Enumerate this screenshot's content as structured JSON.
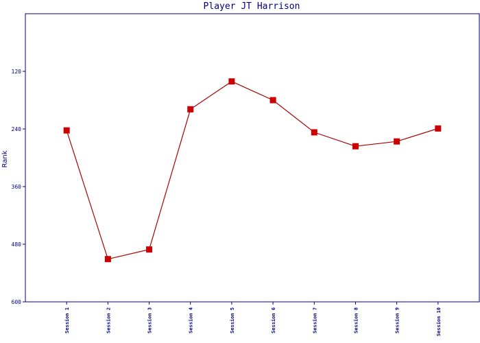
{
  "chart_data": {
    "type": "line",
    "title": "Player JT Harrison",
    "y_label": "Rank",
    "categories": [
      "Session 1",
      "Session 2",
      "Session 3",
      "Session 4",
      "Session 5",
      "Session 6",
      "Session 7",
      "Session 8",
      "Session 9",
      "Session 10"
    ],
    "series": [
      {
        "name": "JT Harrison",
        "color": "#aa0000",
        "marker_color": "#cc0000",
        "values": [
          243,
          511,
          491,
          199,
          141,
          180,
          247,
          276,
          266,
          239
        ]
      }
    ],
    "ylim": [
      0,
      600
    ],
    "yticks": [
      120,
      240,
      360,
      480,
      600
    ],
    "y_inverted": true
  }
}
